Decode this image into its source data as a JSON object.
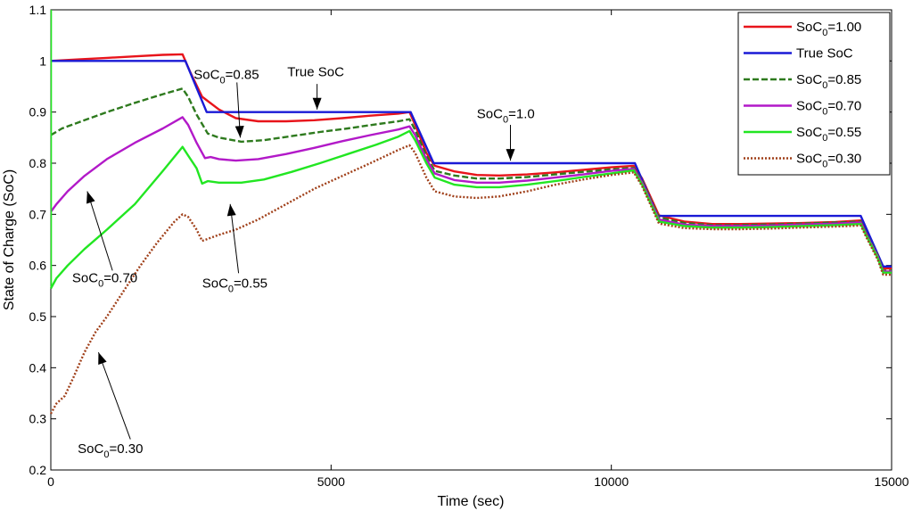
{
  "chart_data": {
    "type": "line",
    "title": "",
    "xlabel": "Time (sec)",
    "ylabel": "State of Charge (SoC)",
    "xlim": [
      0,
      15000
    ],
    "ylim": [
      0.2,
      1.1
    ],
    "xticks": [
      0,
      5000,
      10000,
      15000
    ],
    "xtick_labels": [
      "0",
      "5000",
      "10000",
      "15000"
    ],
    "yticks": [
      0.2,
      0.3,
      0.4,
      0.5,
      0.6,
      0.7,
      0.8,
      0.9,
      1.0,
      1.1
    ],
    "ytick_labels": [
      "0.2",
      "0.3",
      "0.4",
      "0.5",
      "0.6",
      "0.7",
      "0.8",
      "0.9",
      "1",
      "1.1"
    ],
    "grid": false,
    "legend_position": "top-right",
    "series": [
      {
        "name": "SoC0=1.00",
        "label_main": "SoC",
        "label_sub": "0",
        "label_rest": "=1.00",
        "color": "#e8141b",
        "dash": "solid",
        "points": [
          [
            0,
            1.0
          ],
          [
            500,
            1.003
          ],
          [
            1000,
            1.006
          ],
          [
            1500,
            1.009
          ],
          [
            2000,
            1.012
          ],
          [
            2350,
            1.013
          ],
          [
            2500,
            0.975
          ],
          [
            2700,
            0.93
          ],
          [
            3000,
            0.905
          ],
          [
            3300,
            0.888
          ],
          [
            3700,
            0.882
          ],
          [
            4200,
            0.882
          ],
          [
            4700,
            0.884
          ],
          [
            5200,
            0.888
          ],
          [
            5700,
            0.893
          ],
          [
            6200,
            0.897
          ],
          [
            6400,
            0.9
          ],
          [
            6500,
            0.875
          ],
          [
            6700,
            0.82
          ],
          [
            6850,
            0.795
          ],
          [
            7200,
            0.784
          ],
          [
            7600,
            0.777
          ],
          [
            8000,
            0.776
          ],
          [
            8500,
            0.778
          ],
          [
            9000,
            0.782
          ],
          [
            9500,
            0.787
          ],
          [
            10000,
            0.792
          ],
          [
            10400,
            0.795
          ],
          [
            10550,
            0.77
          ],
          [
            10850,
            0.698
          ],
          [
            11300,
            0.686
          ],
          [
            11800,
            0.681
          ],
          [
            12300,
            0.681
          ],
          [
            12800,
            0.682
          ],
          [
            13400,
            0.683
          ],
          [
            14000,
            0.685
          ],
          [
            14450,
            0.688
          ],
          [
            14550,
            0.665
          ],
          [
            14750,
            0.622
          ],
          [
            14850,
            0.594
          ],
          [
            15000,
            0.594
          ]
        ]
      },
      {
        "name": "True SoC",
        "label_main": "True SoC",
        "label_sub": "",
        "label_rest": "",
        "color": "#1a1ad6",
        "dash": "solid",
        "points": [
          [
            0,
            1.0
          ],
          [
            2400,
            1.0
          ],
          [
            2780,
            0.9
          ],
          [
            6420,
            0.9
          ],
          [
            6830,
            0.8
          ],
          [
            10420,
            0.8
          ],
          [
            10830,
            0.697
          ],
          [
            14450,
            0.697
          ],
          [
            14850,
            0.598
          ],
          [
            15000,
            0.598
          ]
        ]
      },
      {
        "name": "SoC0=0.85",
        "label_main": "SoC",
        "label_sub": "0",
        "label_rest": "=0.85",
        "color": "#2e7a1e",
        "dash": "dashed",
        "points": [
          [
            0,
            0.855
          ],
          [
            200,
            0.868
          ],
          [
            500,
            0.88
          ],
          [
            1000,
            0.9
          ],
          [
            1500,
            0.918
          ],
          [
            2000,
            0.935
          ],
          [
            2350,
            0.946
          ],
          [
            2450,
            0.93
          ],
          [
            2600,
            0.895
          ],
          [
            2800,
            0.858
          ],
          [
            3000,
            0.85
          ],
          [
            3400,
            0.842
          ],
          [
            3800,
            0.845
          ],
          [
            4300,
            0.853
          ],
          [
            4800,
            0.861
          ],
          [
            5300,
            0.868
          ],
          [
            5800,
            0.876
          ],
          [
            6200,
            0.882
          ],
          [
            6400,
            0.886
          ],
          [
            6500,
            0.865
          ],
          [
            6700,
            0.815
          ],
          [
            6850,
            0.785
          ],
          [
            7200,
            0.776
          ],
          [
            7600,
            0.77
          ],
          [
            8000,
            0.77
          ],
          [
            8500,
            0.773
          ],
          [
            9000,
            0.778
          ],
          [
            9500,
            0.783
          ],
          [
            10000,
            0.788
          ],
          [
            10400,
            0.791
          ],
          [
            10550,
            0.765
          ],
          [
            10850,
            0.694
          ],
          [
            11300,
            0.683
          ],
          [
            11800,
            0.679
          ],
          [
            12300,
            0.679
          ],
          [
            12800,
            0.68
          ],
          [
            13400,
            0.682
          ],
          [
            14000,
            0.684
          ],
          [
            14450,
            0.686
          ],
          [
            14550,
            0.662
          ],
          [
            14750,
            0.62
          ],
          [
            14850,
            0.59
          ],
          [
            15000,
            0.59
          ]
        ]
      },
      {
        "name": "SoC0=0.70",
        "label_main": "SoC",
        "label_sub": "0",
        "label_rest": "=0.70",
        "color": "#b219c8",
        "dash": "solid",
        "points": [
          [
            0,
            0.705
          ],
          [
            100,
            0.72
          ],
          [
            300,
            0.745
          ],
          [
            600,
            0.775
          ],
          [
            1000,
            0.808
          ],
          [
            1500,
            0.84
          ],
          [
            2000,
            0.868
          ],
          [
            2350,
            0.89
          ],
          [
            2450,
            0.875
          ],
          [
            2600,
            0.84
          ],
          [
            2750,
            0.81
          ],
          [
            2850,
            0.812
          ],
          [
            3000,
            0.808
          ],
          [
            3300,
            0.805
          ],
          [
            3700,
            0.808
          ],
          [
            4200,
            0.818
          ],
          [
            4700,
            0.83
          ],
          [
            5200,
            0.843
          ],
          [
            5700,
            0.855
          ],
          [
            6200,
            0.866
          ],
          [
            6400,
            0.872
          ],
          [
            6500,
            0.855
          ],
          [
            6700,
            0.808
          ],
          [
            6850,
            0.78
          ],
          [
            7200,
            0.767
          ],
          [
            7600,
            0.762
          ],
          [
            8000,
            0.762
          ],
          [
            8500,
            0.766
          ],
          [
            9000,
            0.772
          ],
          [
            9500,
            0.778
          ],
          [
            10000,
            0.785
          ],
          [
            10400,
            0.789
          ],
          [
            10550,
            0.762
          ],
          [
            10850,
            0.69
          ],
          [
            11300,
            0.68
          ],
          [
            11800,
            0.677
          ],
          [
            12300,
            0.677
          ],
          [
            12800,
            0.678
          ],
          [
            13400,
            0.68
          ],
          [
            14000,
            0.682
          ],
          [
            14450,
            0.684
          ],
          [
            14550,
            0.66
          ],
          [
            14750,
            0.618
          ],
          [
            14850,
            0.588
          ],
          [
            15000,
            0.588
          ]
        ]
      },
      {
        "name": "SoC0=0.55",
        "label_main": "SoC",
        "label_sub": "0",
        "label_rest": "=0.55",
        "color": "#22e622",
        "dash": "solid",
        "points": [
          [
            0,
            0.555
          ],
          [
            100,
            0.575
          ],
          [
            300,
            0.6
          ],
          [
            600,
            0.632
          ],
          [
            1000,
            0.67
          ],
          [
            1500,
            0.72
          ],
          [
            2000,
            0.785
          ],
          [
            2350,
            0.832
          ],
          [
            2450,
            0.815
          ],
          [
            2600,
            0.79
          ],
          [
            2700,
            0.76
          ],
          [
            2800,
            0.765
          ],
          [
            3000,
            0.762
          ],
          [
            3400,
            0.762
          ],
          [
            3800,
            0.768
          ],
          [
            4300,
            0.783
          ],
          [
            4800,
            0.8
          ],
          [
            5300,
            0.818
          ],
          [
            5800,
            0.836
          ],
          [
            6200,
            0.852
          ],
          [
            6400,
            0.863
          ],
          [
            6500,
            0.845
          ],
          [
            6700,
            0.8
          ],
          [
            6850,
            0.772
          ],
          [
            7200,
            0.758
          ],
          [
            7600,
            0.753
          ],
          [
            8000,
            0.753
          ],
          [
            8500,
            0.758
          ],
          [
            9000,
            0.765
          ],
          [
            9500,
            0.773
          ],
          [
            10000,
            0.78
          ],
          [
            10400,
            0.786
          ],
          [
            10550,
            0.758
          ],
          [
            10850,
            0.686
          ],
          [
            11300,
            0.677
          ],
          [
            11800,
            0.674
          ],
          [
            12300,
            0.674
          ],
          [
            12800,
            0.675
          ],
          [
            13400,
            0.677
          ],
          [
            14000,
            0.679
          ],
          [
            14450,
            0.681
          ],
          [
            14550,
            0.658
          ],
          [
            14750,
            0.615
          ],
          [
            14850,
            0.586
          ],
          [
            15000,
            0.586
          ]
        ]
      },
      {
        "name": "SoC0=0.30",
        "label_main": "SoC",
        "label_sub": "0",
        "label_rest": "=0.30",
        "color": "#a0401a",
        "dash": "dotted",
        "points": [
          [
            0,
            0.31
          ],
          [
            100,
            0.33
          ],
          [
            250,
            0.345
          ],
          [
            400,
            0.38
          ],
          [
            600,
            0.43
          ],
          [
            800,
            0.47
          ],
          [
            1000,
            0.5
          ],
          [
            1300,
            0.55
          ],
          [
            1600,
            0.6
          ],
          [
            1900,
            0.645
          ],
          [
            2200,
            0.685
          ],
          [
            2350,
            0.7
          ],
          [
            2450,
            0.695
          ],
          [
            2600,
            0.67
          ],
          [
            2700,
            0.648
          ],
          [
            2800,
            0.652
          ],
          [
            3000,
            0.66
          ],
          [
            3300,
            0.67
          ],
          [
            3700,
            0.69
          ],
          [
            4200,
            0.72
          ],
          [
            4700,
            0.75
          ],
          [
            5200,
            0.775
          ],
          [
            5700,
            0.8
          ],
          [
            6200,
            0.826
          ],
          [
            6400,
            0.835
          ],
          [
            6500,
            0.82
          ],
          [
            6700,
            0.772
          ],
          [
            6850,
            0.745
          ],
          [
            7200,
            0.735
          ],
          [
            7600,
            0.732
          ],
          [
            8000,
            0.735
          ],
          [
            8500,
            0.745
          ],
          [
            9000,
            0.758
          ],
          [
            9500,
            0.768
          ],
          [
            10000,
            0.777
          ],
          [
            10400,
            0.782
          ],
          [
            10550,
            0.755
          ],
          [
            10850,
            0.682
          ],
          [
            11300,
            0.673
          ],
          [
            11800,
            0.671
          ],
          [
            12300,
            0.671
          ],
          [
            12800,
            0.672
          ],
          [
            13400,
            0.674
          ],
          [
            14000,
            0.676
          ],
          [
            14450,
            0.678
          ],
          [
            14550,
            0.655
          ],
          [
            14750,
            0.612
          ],
          [
            14850,
            0.582
          ],
          [
            15000,
            0.582
          ]
        ]
      }
    ],
    "annotations": [
      {
        "id": "soc085",
        "main": "SoC",
        "sub": "0",
        "rest": "=0.85",
        "text_at": [
          2550,
          0.965
        ],
        "arrow_from": [
          3320,
          0.958
        ],
        "arrow_to": [
          3380,
          0.85
        ]
      },
      {
        "id": "truesoc",
        "main": "True SoC",
        "sub": "",
        "rest": "",
        "text_at": [
          4220,
          0.97
        ],
        "arrow_from": [
          4750,
          0.955
        ],
        "arrow_to": [
          4750,
          0.905
        ]
      },
      {
        "id": "soc10",
        "main": "SoC",
        "sub": "0",
        "rest": "=1.0",
        "text_at": [
          7600,
          0.888
        ],
        "arrow_from": [
          8200,
          0.875
        ],
        "arrow_to": [
          8200,
          0.805
        ]
      },
      {
        "id": "soc070",
        "main": "SoC",
        "sub": "0",
        "rest": "=0.70",
        "text_at": [
          380,
          0.567
        ],
        "arrow_from": [
          1100,
          0.59
        ],
        "arrow_to": [
          650,
          0.745
        ]
      },
      {
        "id": "soc055",
        "main": "SoC",
        "sub": "0",
        "rest": "=0.55",
        "text_at": [
          2700,
          0.557
        ],
        "arrow_from": [
          3350,
          0.585
        ],
        "arrow_to": [
          3200,
          0.72
        ]
      },
      {
        "id": "soc030",
        "main": "SoC",
        "sub": "0",
        "rest": "=0.30",
        "text_at": [
          480,
          0.233
        ],
        "arrow_from": [
          1420,
          0.26
        ],
        "arrow_to": [
          850,
          0.43
        ]
      }
    ]
  }
}
